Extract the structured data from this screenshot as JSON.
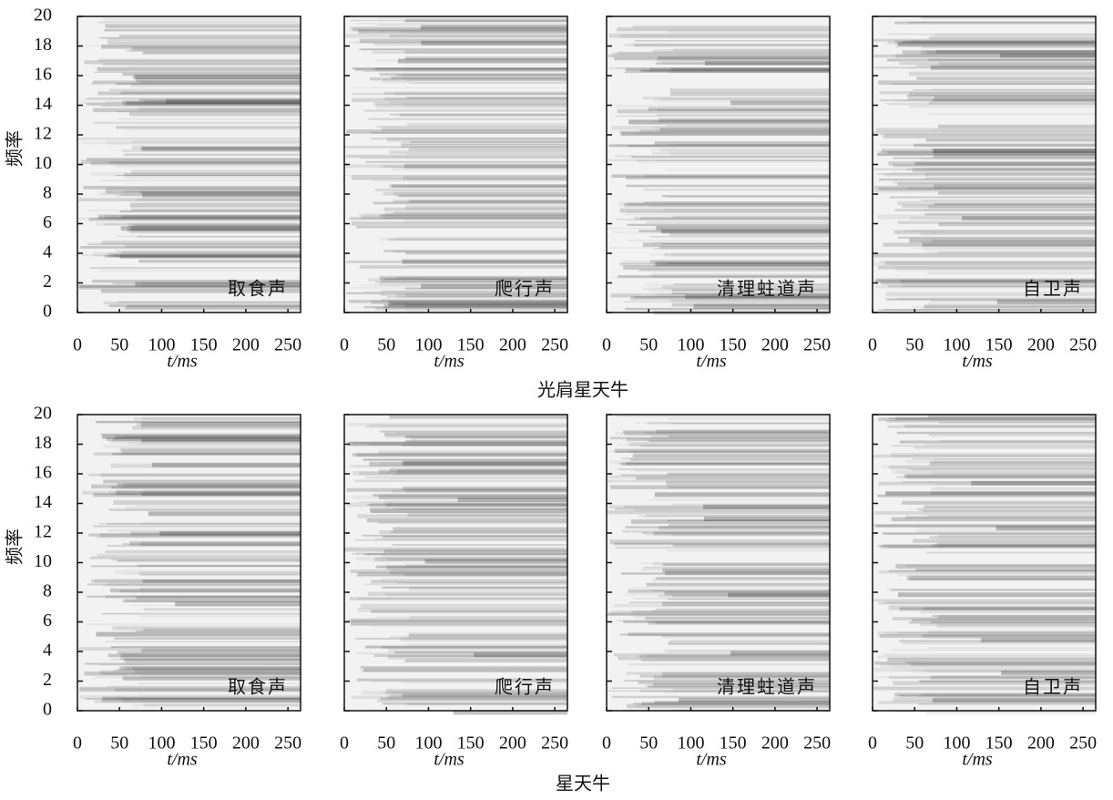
{
  "figure": {
    "row_titles": [
      "光肩星天牛",
      "星天牛"
    ]
  },
  "chart_data": [
    {
      "type": "spectrogram",
      "label": "取食声",
      "xlabel": "t/ms",
      "ylabel": "频率",
      "show_ytick_labels": true,
      "xlim": [
        0,
        265
      ],
      "ylim": [
        0,
        20
      ],
      "xticks": [
        0,
        50,
        100,
        150,
        200,
        250
      ],
      "yticks": [
        0,
        2,
        4,
        6,
        8,
        10,
        12,
        14,
        16,
        18,
        20
      ]
    },
    {
      "type": "spectrogram",
      "label": "爬行声",
      "xlabel": "t/ms",
      "show_ytick_labels": false,
      "xlim": [
        0,
        265
      ],
      "ylim": [
        0,
        20
      ],
      "xticks": [
        0,
        50,
        100,
        150,
        200,
        250
      ],
      "yticks": [
        0,
        2,
        4,
        6,
        8,
        10,
        12,
        14,
        16,
        18,
        20
      ]
    },
    {
      "type": "spectrogram",
      "label": "清理蛀道声",
      "xlabel": "t/ms",
      "show_ytick_labels": false,
      "xlim": [
        0,
        265
      ],
      "ylim": [
        0,
        20
      ],
      "xticks": [
        0,
        50,
        100,
        150,
        200,
        250
      ],
      "yticks": [
        0,
        2,
        4,
        6,
        8,
        10,
        12,
        14,
        16,
        18,
        20
      ]
    },
    {
      "type": "spectrogram",
      "label": "自卫声",
      "xlabel": "t/ms",
      "show_ytick_labels": false,
      "xlim": [
        0,
        265
      ],
      "ylim": [
        0,
        20
      ],
      "xticks": [
        0,
        50,
        100,
        150,
        200,
        250
      ],
      "yticks": [
        0,
        2,
        4,
        6,
        8,
        10,
        12,
        14,
        16,
        18,
        20
      ]
    },
    {
      "type": "spectrogram",
      "label": "取食声",
      "xlabel": "t/ms",
      "ylabel": "频率",
      "show_ytick_labels": true,
      "xlim": [
        0,
        265
      ],
      "ylim": [
        0,
        20
      ],
      "xticks": [
        0,
        50,
        100,
        150,
        200,
        250
      ],
      "yticks": [
        0,
        2,
        4,
        6,
        8,
        10,
        12,
        14,
        16,
        18,
        20
      ]
    },
    {
      "type": "spectrogram",
      "label": "爬行声",
      "xlabel": "t/ms",
      "show_ytick_labels": false,
      "xlim": [
        0,
        265
      ],
      "ylim": [
        0,
        20
      ],
      "xticks": [
        0,
        50,
        100,
        150,
        200,
        250
      ],
      "yticks": [
        0,
        2,
        4,
        6,
        8,
        10,
        12,
        14,
        16,
        18,
        20
      ]
    },
    {
      "type": "spectrogram",
      "label": "清理蛀道声",
      "xlabel": "t/ms",
      "show_ytick_labels": false,
      "xlim": [
        0,
        265
      ],
      "ylim": [
        0,
        20
      ],
      "xticks": [
        0,
        50,
        100,
        150,
        200,
        250
      ],
      "yticks": [
        0,
        2,
        4,
        6,
        8,
        10,
        12,
        14,
        16,
        18,
        20
      ]
    },
    {
      "type": "spectrogram",
      "label": "自卫声",
      "xlabel": "t/ms",
      "show_ytick_labels": false,
      "xlim": [
        0,
        265
      ],
      "ylim": [
        0,
        20
      ],
      "xticks": [
        0,
        50,
        100,
        150,
        200,
        250
      ],
      "yticks": [
        0,
        2,
        4,
        6,
        8,
        10,
        12,
        14,
        16,
        18,
        20
      ]
    }
  ]
}
